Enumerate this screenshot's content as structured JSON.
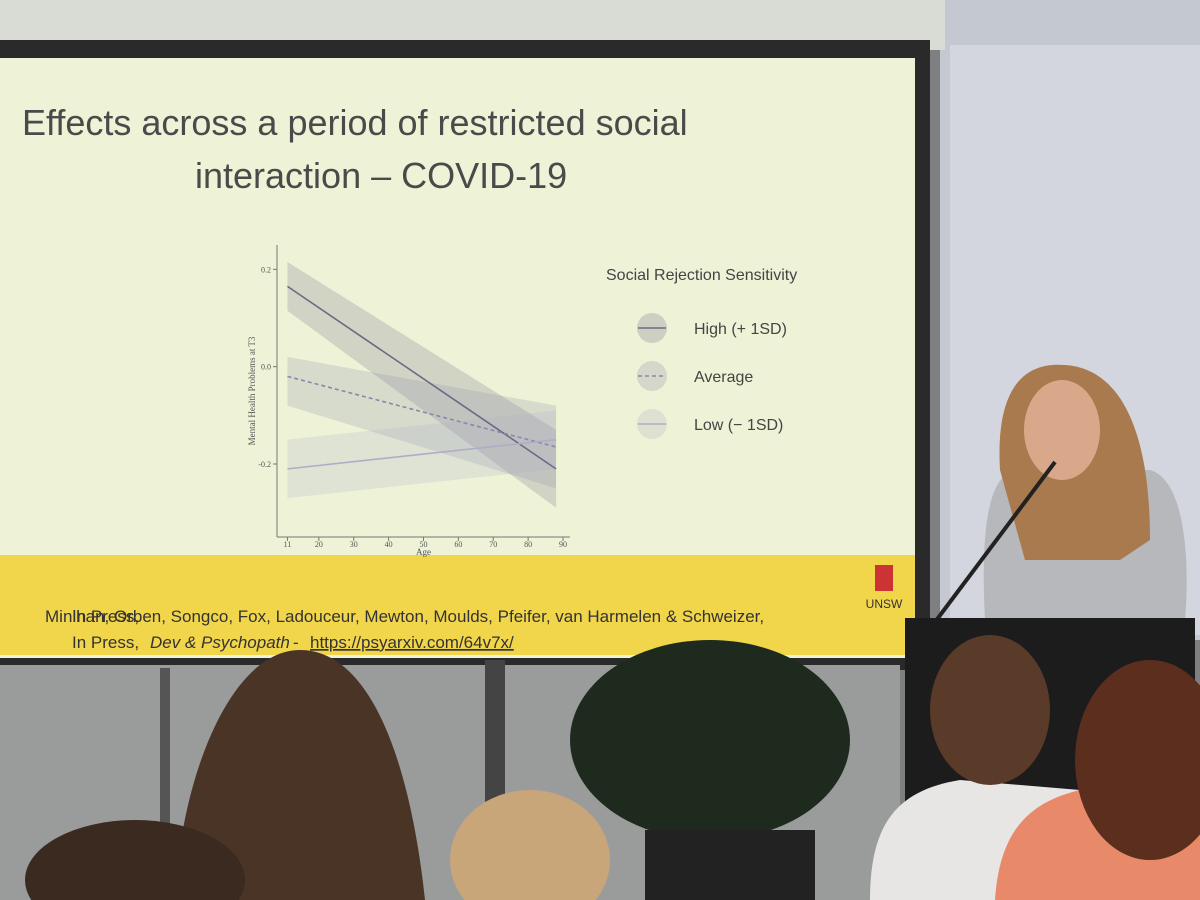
{
  "slide": {
    "title_lines": [
      "Effects across a period of restricted social",
      "interaction – COVID-19"
    ],
    "citation_line_1": "Minihan, Orben, Songco, Fox, Ladouceur, Mewton, Moulds, Pfeifer, van Harmelen & Schweizer,",
    "citation_prefix": "In Press,",
    "journal": "Dev & Psychopath",
    "separator": "-",
    "link": "https://psyarxiv.com/64v7x/",
    "logo": "UNSW"
  },
  "chart_data": {
    "type": "line",
    "x_label": "Age",
    "y_label": "Mental Health Problems at T3",
    "legend_title": "Social Rejection Sensitivity",
    "x": [
      11,
      88
    ],
    "xlim": [
      8,
      92
    ],
    "xticks": [
      11,
      20,
      30,
      40,
      50,
      60,
      70,
      80,
      90
    ],
    "ylim": [
      -0.35,
      0.25
    ],
    "yticks": [
      0.2,
      {
        "value": 0,
        "label": "0.0"
      },
      -0.2
    ],
    "series": [
      {
        "name": "High (+ 1SD)",
        "color": "#6d6888",
        "line_style": "solid",
        "values": [
          0.165,
          -0.21
        ],
        "lower": [
          0.115,
          -0.29
        ],
        "upper": [
          0.215,
          -0.13
        ]
      },
      {
        "name": "Average",
        "color": "#8a87a8",
        "line_style": "dashed",
        "values": [
          -0.02,
          -0.165
        ],
        "lower": [
          -0.08,
          -0.25
        ],
        "upper": [
          0.02,
          -0.08
        ]
      },
      {
        "name": "Low (− 1SD)",
        "color": "#aeadc8",
        "line_style": "solid",
        "values": [
          -0.21,
          -0.15
        ],
        "lower": [
          -0.27,
          -0.21
        ],
        "upper": [
          -0.15,
          -0.09
        ]
      }
    ]
  }
}
